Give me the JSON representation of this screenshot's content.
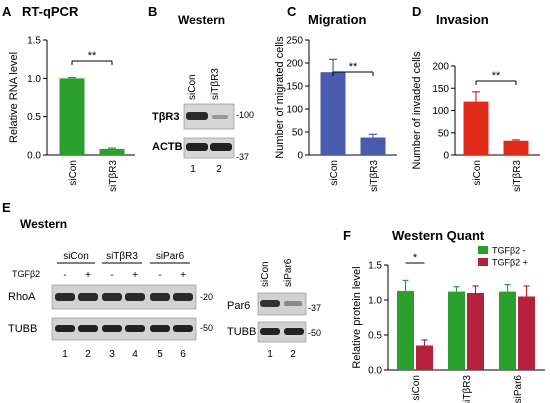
{
  "panels": {
    "a": {
      "letter": "A",
      "title": "RT-qPCR"
    },
    "b": {
      "letter": "B",
      "title": "Western"
    },
    "c": {
      "letter": "C",
      "title": "Migration"
    },
    "d": {
      "letter": "D",
      "title": "Invasion"
    },
    "e": {
      "letter": "E",
      "title": "Western"
    },
    "f": {
      "letter": "F",
      "title": "Western Quant"
    }
  },
  "significance": {
    "a": "**",
    "c": "**",
    "d": "**",
    "f": "*"
  },
  "blot_b": {
    "lanes": [
      "siCon",
      "siTβR3"
    ],
    "rows": [
      "TβR3",
      "ACTB"
    ],
    "markers": [
      "-100",
      "-37"
    ],
    "lane_numbers": [
      "1",
      "2"
    ]
  },
  "blot_e_left": {
    "groups": [
      "siCon",
      "siTβR3",
      "siPar6"
    ],
    "treatment_label": "TGFβ2",
    "treatment_signs": [
      "-",
      "+",
      "-",
      "+",
      "-",
      "+"
    ],
    "rows": [
      "RhoA",
      "TUBB"
    ],
    "markers": [
      "-20",
      "-50"
    ],
    "lane_numbers": [
      "1",
      "2",
      "3",
      "4",
      "5",
      "6"
    ]
  },
  "blot_e_right": {
    "lanes": [
      "siCon",
      "siPar6"
    ],
    "rows": [
      "Par6",
      "TUBB"
    ],
    "markers": [
      "-37",
      "-50"
    ],
    "lane_numbers": [
      "1",
      "2"
    ]
  },
  "colors": {
    "green": "#2ca02c",
    "blue": "#4a5aae",
    "red": "#e02a1a",
    "crimson": "#b5203a"
  },
  "chart_data": [
    {
      "id": "a",
      "type": "bar",
      "title": "RT-qPCR",
      "ylabel": "Relative RNA level",
      "categories": [
        "siCon",
        "siTβR3"
      ],
      "values": [
        1.0,
        0.08
      ],
      "errors": [
        0.01,
        0.01
      ],
      "ylim": [
        0,
        1.5
      ],
      "yticks": [
        "0.0",
        "0.5",
        "1.0",
        "1.5"
      ],
      "color": "#2ca02c"
    },
    {
      "id": "c",
      "type": "bar",
      "title": "Migration",
      "ylabel": "Number of migrated cells",
      "categories": [
        "siCon",
        "siTβR3"
      ],
      "values": [
        180,
        38
      ],
      "errors": [
        28,
        7
      ],
      "ylim": [
        0,
        250
      ],
      "yticks": [
        "0",
        "50",
        "100",
        "150",
        "200",
        "250"
      ],
      "color": "#4a5aae"
    },
    {
      "id": "d",
      "type": "bar",
      "title": "Invasion",
      "ylabel": "Number of invaded cells",
      "categories": [
        "siCon",
        "siTβR3"
      ],
      "values": [
        120,
        32
      ],
      "errors": [
        22,
        2
      ],
      "ylim": [
        0,
        200
      ],
      "yticks": [
        "0",
        "50",
        "100",
        "150",
        "200"
      ],
      "color": "#e02a1a"
    },
    {
      "id": "f",
      "type": "bar",
      "title": "Western Quant",
      "ylabel": "Relative protein level",
      "categories": [
        "siCon",
        "siTβR3",
        "siPar6"
      ],
      "series": [
        {
          "name": "TGFβ2 -",
          "values": [
            1.13,
            1.12,
            1.12
          ],
          "errors": [
            0.15,
            0.07,
            0.1
          ],
          "color": "#2ca02c"
        },
        {
          "name": "TGFβ2 +",
          "values": [
            0.35,
            1.1,
            1.05
          ],
          "errors": [
            0.08,
            0.1,
            0.15
          ],
          "color": "#b5203a"
        }
      ],
      "ylim": [
        0,
        1.5
      ],
      "yticks": [
        "0.0",
        "0.5",
        "1.0",
        "1.5"
      ],
      "legend": "top-right"
    }
  ]
}
